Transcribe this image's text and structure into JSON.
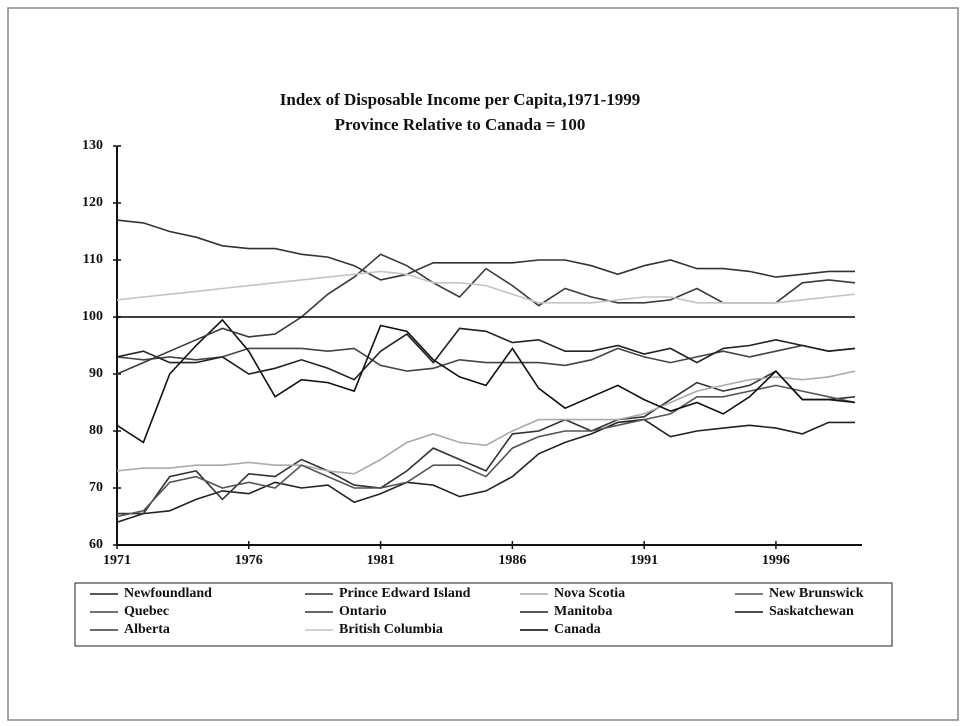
{
  "chart_data": {
    "type": "line",
    "title": "Index of Disposable Income per Capita,1971-1999",
    "subtitle": "Province Relative to Canada = 100",
    "x": [
      1971,
      1972,
      1973,
      1974,
      1975,
      1976,
      1977,
      1978,
      1979,
      1980,
      1981,
      1982,
      1983,
      1984,
      1985,
      1986,
      1987,
      1988,
      1989,
      1990,
      1991,
      1992,
      1993,
      1994,
      1995,
      1996,
      1997,
      1998,
      1999
    ],
    "xlim": [
      1971,
      1999
    ],
    "xticks": [
      1971,
      1976,
      1981,
      1986,
      1991,
      1996
    ],
    "ylim": [
      60,
      130
    ],
    "yticks": [
      60,
      70,
      80,
      90,
      100,
      110,
      120,
      130
    ],
    "series": [
      {
        "name": "Newfoundland",
        "color": "#222222",
        "values": [
          64,
          65.5,
          66,
          68,
          69.5,
          69,
          71,
          70,
          70.5,
          67.5,
          69,
          71,
          70.5,
          68.5,
          69.5,
          72,
          76,
          78,
          79.5,
          81.5,
          82,
          79,
          80,
          80.5,
          81,
          80.5,
          79.5,
          81.5,
          81.5
        ]
      },
      {
        "name": "Prince Edward Island",
        "color": "#333333",
        "values": [
          65.5,
          65.5,
          72,
          73,
          68,
          72.5,
          72,
          75,
          73,
          70.5,
          70,
          73,
          77,
          75,
          73,
          79.5,
          80,
          82,
          80,
          82,
          82.5,
          85.5,
          88.5,
          87,
          88,
          90.5,
          85.5,
          85.5,
          86
        ]
      },
      {
        "name": "Nova Scotia",
        "color": "#aaaaaa",
        "values": [
          73,
          73.5,
          73.5,
          74,
          74,
          74.5,
          74,
          74,
          73,
          72.5,
          75,
          78,
          79.5,
          78,
          77.5,
          80,
          82,
          82,
          82,
          82,
          83,
          85,
          87,
          88,
          89,
          89.5,
          89,
          89.5,
          90.5
        ]
      },
      {
        "name": "New Brunswick",
        "color": "#555555",
        "values": [
          65,
          66,
          71,
          72,
          70,
          71,
          70,
          74,
          72,
          70,
          70,
          71,
          74,
          74,
          72,
          77,
          79,
          80,
          80,
          81,
          82,
          83,
          86,
          86,
          87,
          88,
          87,
          86,
          85
        ]
      },
      {
        "name": "Quebec",
        "color": "#444444",
        "values": [
          93,
          92.5,
          93,
          92.5,
          93,
          94.5,
          94.5,
          94.5,
          94,
          94.5,
          91.5,
          90.5,
          91,
          92.5,
          92,
          92,
          92,
          91.5,
          92.5,
          94.5,
          93,
          92,
          93,
          94,
          93,
          94,
          95,
          94,
          94.5
        ]
      },
      {
        "name": "Ontario",
        "color": "#333333",
        "values": [
          117,
          116.5,
          115,
          114,
          112.5,
          112,
          112,
          111,
          110.5,
          109,
          106.5,
          107.5,
          109.5,
          109.5,
          109.5,
          109.5,
          110,
          110,
          109,
          107.5,
          109,
          110,
          108.5,
          108.5,
          108,
          107,
          107.5,
          108,
          108
        ]
      },
      {
        "name": "Manitoba",
        "color": "#222222",
        "values": [
          93,
          94,
          92,
          92,
          93,
          90,
          91,
          92.5,
          91,
          89,
          94,
          97,
          92,
          98,
          97.5,
          95.5,
          96,
          94,
          94,
          95,
          93.5,
          94.5,
          92,
          94.5,
          95,
          96,
          95,
          94,
          94.5
        ]
      },
      {
        "name": "Saskatchewan",
        "color": "#111111",
        "values": [
          81,
          78,
          90,
          95,
          99.5,
          94,
          86,
          89,
          88.5,
          87,
          98.5,
          97.5,
          92.5,
          89.5,
          88,
          94.5,
          87.5,
          84,
          86,
          88,
          85.5,
          83.5,
          85,
          83,
          86,
          90.5,
          85.5,
          85.5,
          85
        ]
      },
      {
        "name": "Alberta",
        "color": "#3a3a3a",
        "values": [
          90,
          92,
          94,
          96,
          98,
          96.5,
          97,
          100,
          104,
          107,
          111,
          109,
          106,
          103.5,
          108.5,
          105.5,
          102,
          105,
          103.5,
          102.5,
          102.5,
          103,
          105,
          102.5,
          102.5,
          102.5,
          106,
          106.5,
          106
        ]
      },
      {
        "name": "British Columbia",
        "color": "#c4c4c4",
        "values": [
          103,
          103.5,
          104,
          104.5,
          105,
          105.5,
          106,
          106.5,
          107,
          107.5,
          108,
          107.5,
          106,
          106,
          105.5,
          104,
          102.5,
          102.5,
          102.5,
          103,
          103.5,
          103.5,
          102.5,
          102.5,
          102.5,
          102.5,
          103,
          103.5,
          104
        ]
      },
      {
        "name": "Canada",
        "color": "#000000",
        "values": [
          100,
          100,
          100,
          100,
          100,
          100,
          100,
          100,
          100,
          100,
          100,
          100,
          100,
          100,
          100,
          100,
          100,
          100,
          100,
          100,
          100,
          100,
          100,
          100,
          100,
          100,
          100,
          100,
          100
        ]
      }
    ]
  }
}
